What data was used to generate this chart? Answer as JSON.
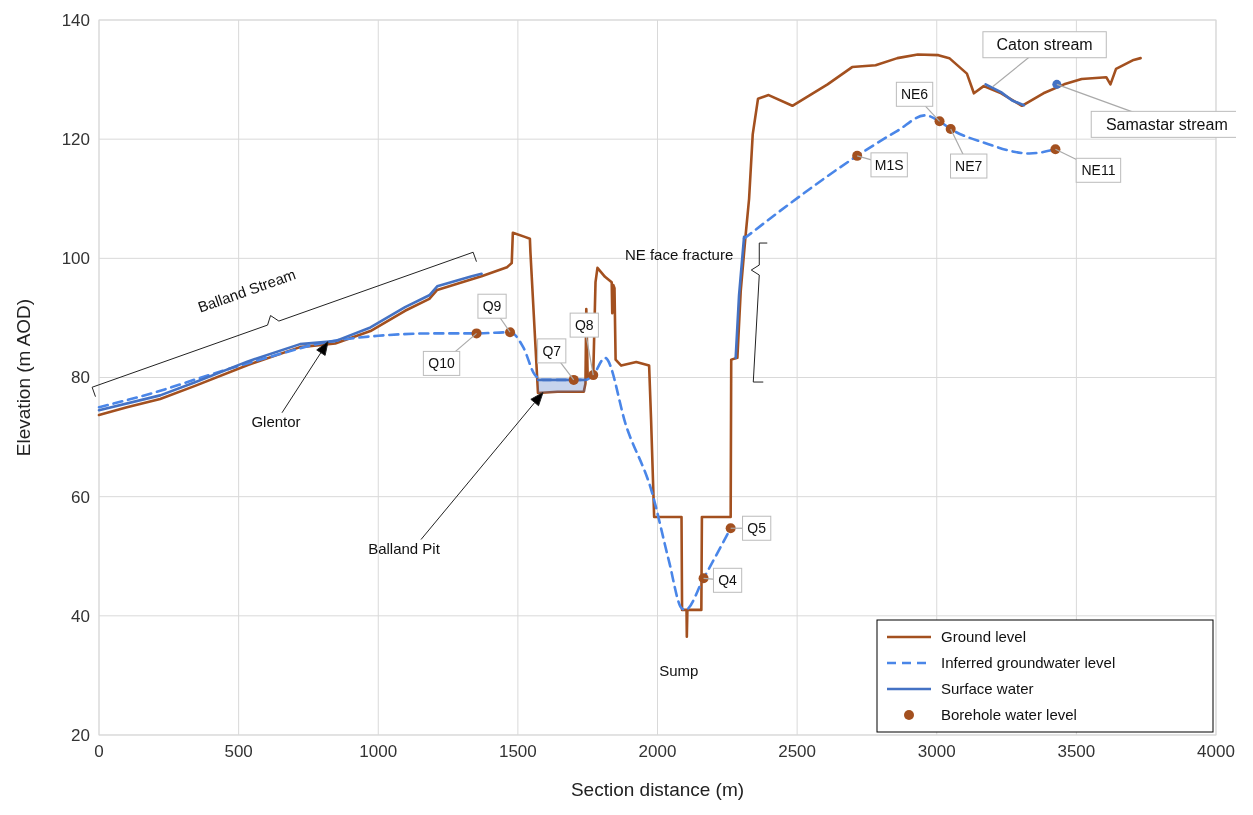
{
  "chart_data": {
    "type": "line",
    "xlabel": "Section distance (m)",
    "ylabel": "Elevation (m AOD)",
    "xlim": [
      0,
      4000
    ],
    "xticks": [
      0,
      500,
      1000,
      1500,
      2000,
      2500,
      3000,
      3500,
      4000
    ],
    "ylim": [
      20,
      140
    ],
    "yticks": [
      20,
      40,
      60,
      80,
      100,
      120,
      140
    ],
    "grid": true,
    "legend": "bottom right",
    "series": [
      {
        "name": "Ground level",
        "line_style": "solid",
        "color": "#a3501f",
        "x": [
          0,
          100,
          219,
          344,
          533,
          720,
          846,
          972,
          1096,
          1183,
          1211,
          1335,
          1370,
          1461,
          1478,
          1482,
          1525,
          1543,
          1545,
          1572,
          1642,
          1736,
          1742,
          1745,
          1750,
          1770,
          1778,
          1785,
          1812,
          1836,
          1838,
          1842,
          1846,
          1850,
          1870,
          1924,
          1970,
          1977,
          1988,
          2086,
          2088,
          2104,
          2105,
          2107,
          2157,
          2159,
          2262,
          2264,
          2286,
          2298,
          2315,
          2328,
          2341,
          2360,
          2398,
          2483,
          2546,
          2609,
          2697,
          2781,
          2859,
          2932,
          3006,
          3045,
          3108,
          3133,
          3168,
          3231,
          3305,
          3382,
          3456,
          3519,
          3607,
          3622,
          3642,
          3705,
          3730
        ],
        "values": [
          73.7,
          75,
          76.4,
          78.6,
          82.1,
          85.1,
          85.7,
          87.8,
          91.2,
          93.2,
          94.7,
          96.5,
          97,
          98.5,
          99.2,
          104.3,
          103.6,
          103.3,
          101,
          77.4,
          77.6,
          77.6,
          79,
          91.5,
          80,
          80.6,
          96,
          98.4,
          96.9,
          96,
          90.8,
          95.5,
          95,
          83,
          82,
          82.6,
          82,
          72.9,
          56.6,
          56.6,
          41,
          41,
          36.5,
          41,
          41,
          56.6,
          56.6,
          83,
          83.3,
          94.5,
          103.6,
          110,
          120.8,
          126.8,
          127.4,
          125.6,
          127.4,
          129.2,
          132.1,
          132.4,
          133.6,
          134.2,
          134.1,
          133.6,
          131,
          127.7,
          128.9,
          127.7,
          125.6,
          127.7,
          129.2,
          130.1,
          130.4,
          129.2,
          131.8,
          133.3,
          133.6
        ]
      },
      {
        "name": "Inferred groundwater level",
        "line_style": "dashed",
        "color": "#4a86e8",
        "x": [
          0,
          200,
          400,
          600,
          800,
          1000,
          1200,
          1352,
          1472,
          1520,
          1560,
          1590,
          1700,
          1742,
          1770,
          1812,
          1889,
          1981,
          2040,
          2086,
          2100,
          2165,
          2262,
          2286,
          2310,
          2483,
          2715,
          2859,
          2958,
          3010,
          3050,
          3170,
          3332,
          3425
        ],
        "values": [
          75,
          77.5,
          80.5,
          83.3,
          85.8,
          87,
          87.4,
          87.4,
          87.6,
          85,
          80.5,
          79.6,
          79.6,
          79.6,
          80.4,
          83.3,
          71.7,
          60.6,
          49.4,
          41.3,
          41,
          46.3,
          54.7,
          null,
          103.3,
          109.5,
          117.2,
          121.4,
          124,
          123,
          121.7,
          119.4,
          117.6,
          118.3
        ]
      },
      {
        "name": "Surface water",
        "line_style": "solid",
        "color": "#4472c4",
        "x": [
          0,
          219,
          344,
          533,
          720,
          846,
          972,
          1096,
          1183,
          1211,
          1335,
          1370,
          1470,
          1572,
          1742,
          2000,
          2280,
          2292,
          2310,
          2700,
          3175,
          3230,
          3270,
          3312,
          3400,
          3430
        ],
        "values": [
          74.5,
          77,
          79.2,
          82.7,
          85.6,
          86.1,
          88.4,
          91.8,
          93.8,
          95.3,
          97,
          97.4,
          null,
          79.6,
          79.6,
          null,
          83.3,
          93.8,
          103.6,
          null,
          129.2,
          127.9,
          126.5,
          125.7,
          null,
          129.2
        ],
        "lower": [
          null,
          null,
          null,
          null,
          null,
          null,
          null,
          null,
          null,
          null,
          null,
          null,
          null,
          77.4,
          77.6,
          null,
          null,
          null,
          null,
          null,
          null,
          null,
          null,
          null,
          null,
          null
        ],
        "upper": [
          null,
          null,
          null,
          null,
          null,
          null,
          null,
          null,
          null,
          null,
          null,
          null,
          null,
          79.6,
          79.6,
          null,
          null,
          null,
          null,
          null,
          null,
          null,
          null,
          null,
          null,
          null
        ]
      },
      {
        "name": "Borehole water level",
        "type": "scatter",
        "marker": "circle",
        "color": "#a3501f",
        "x": [
          1352,
          1472,
          1700,
          1770,
          2165,
          2262,
          2715,
          3010,
          3050,
          3425
        ],
        "values": [
          87.4,
          87.6,
          79.6,
          80.4,
          46.3,
          54.7,
          117.2,
          123,
          121.7,
          118.3
        ]
      }
    ],
    "annotations": [
      {
        "text": "Balland Stream",
        "x": 700,
        "y": 84
      },
      "Glentor",
      "Balland Pit",
      {
        "text": "NE face fracture",
        "x": 2300,
        "y": 93
      },
      {
        "text": "Sump",
        "x": 2105,
        "y": 36.5
      },
      {
        "text": "Q10",
        "x": 1352,
        "y": 87.4
      },
      {
        "text": "Q9",
        "x": 1472,
        "y": 87.6
      },
      {
        "text": "Q7",
        "x": 1700,
        "y": 79.6
      },
      {
        "text": "Q8",
        "x": 1770,
        "y": 80.4
      },
      {
        "text": "Q5",
        "x": 2262,
        "y": 54.7
      },
      {
        "text": "Q4",
        "x": 2165,
        "y": 46.3
      },
      {
        "text": "M1S",
        "x": 2715,
        "y": 117.2
      },
      {
        "text": "NE6",
        "x": 3010,
        "y": 123
      },
      {
        "text": "NE7",
        "x": 3050,
        "y": 121.7
      },
      {
        "text": "NE11",
        "x": 3425,
        "y": 118.3
      },
      {
        "text": "Caton stream",
        "x": 3200,
        "y": 128.8
      },
      {
        "text": "Samastar stream",
        "x": 3430,
        "y": 129.2
      }
    ]
  }
}
